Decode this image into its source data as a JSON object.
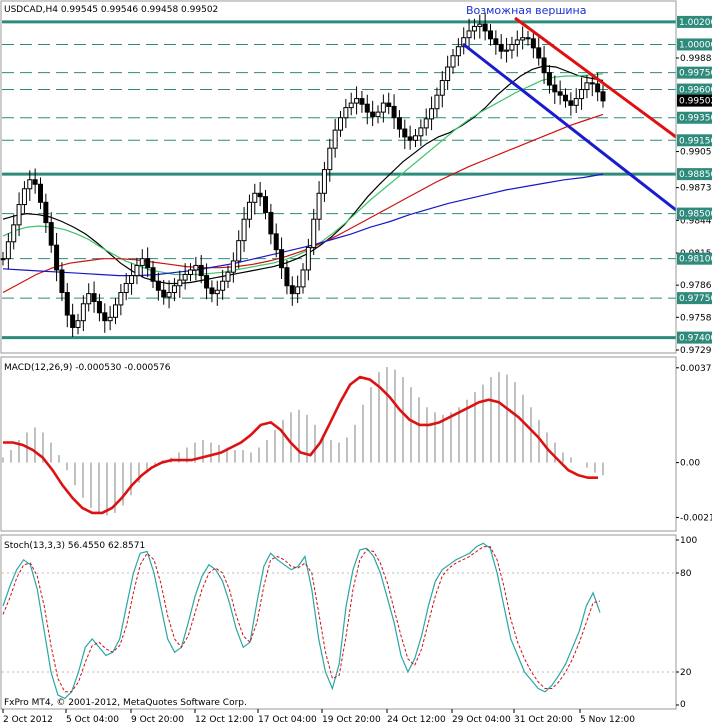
{
  "title": "USDCAD,H4  0.99545 0.99546 0.99458 0.99502",
  "annotation": "Возможная вершина",
  "copyright": "FxPro MT4, © 2001-2012, MetaQuotes Software Corp.",
  "colors": {
    "background": "#ffffff",
    "grid_solid": "#2e8b7b",
    "grid_dash": "#2e8b7b",
    "candle": "#000000",
    "ma_black": "#000000",
    "ma_green": "#3cc46a",
    "ma_red": "#cc1111",
    "ma_blue": "#1818c8",
    "trend_red": "#e01010",
    "trend_blue": "#1a1acf",
    "macd_hist": "#b0b0b0",
    "macd_signal": "#dd1111",
    "stoch_main": "#2aa6a6",
    "stoch_signal": "#cc1111",
    "price_label_bg": "#2e8b7b",
    "current_label_bg": "#000000"
  },
  "chart_data": [
    {
      "type": "candlestick",
      "symbol": "USDCAD",
      "timeframe": "H4",
      "ohlc_last": {
        "open": 0.99545,
        "high": 0.99546,
        "low": 0.99458,
        "close": 0.99502
      },
      "ylim": [
        0.9729,
        1.0035
      ],
      "x_labels": [
        "2 Oct 2012",
        "5 Oct 04:00",
        "9 Oct 20:00",
        "12 Oct 12:00",
        "17 Oct 04:00",
        "19 Oct 20:00",
        "24 Oct 12:00",
        "29 Oct 04:00",
        "31 Oct 20:00",
        "5 Nov 12:00"
      ],
      "y_tick_labels": [
        "0.99880",
        "0.99050",
        "0.98730",
        "0.98440",
        "0.98150",
        "0.97865",
        "0.97580",
        "0.97290"
      ],
      "level_lines_solid": [
        "1.00200",
        "0.98850",
        "0.97400"
      ],
      "level_lines_dashed": [
        "1.00000",
        "0.99750",
        "0.99600",
        "0.99350",
        "0.99150",
        "0.98500",
        "0.98100",
        "0.97750"
      ],
      "current_price_label": "0.99502",
      "series_close": [
        0.981,
        0.9825,
        0.984,
        0.9858,
        0.9872,
        0.988,
        0.9876,
        0.986,
        0.9842,
        0.9822,
        0.98,
        0.978,
        0.976,
        0.9749,
        0.9755,
        0.977,
        0.9779,
        0.9772,
        0.9762,
        0.9755,
        0.9758,
        0.9769,
        0.978,
        0.9788,
        0.9795,
        0.9804,
        0.981,
        0.9802,
        0.979,
        0.9782,
        0.9776,
        0.978,
        0.9786,
        0.9791,
        0.9796,
        0.98,
        0.9804,
        0.9795,
        0.9784,
        0.9779,
        0.9782,
        0.979,
        0.9798,
        0.9808,
        0.9826,
        0.9845,
        0.986,
        0.9868,
        0.9865,
        0.9851,
        0.9832,
        0.9818,
        0.9802,
        0.9786,
        0.9779,
        0.9785,
        0.98,
        0.982,
        0.9845,
        0.9868,
        0.9889,
        0.9908,
        0.9924,
        0.9935,
        0.9944,
        0.9948,
        0.9952,
        0.9947,
        0.994,
        0.9936,
        0.994,
        0.9948,
        0.9945,
        0.9935,
        0.9925,
        0.9918,
        0.9915,
        0.9919,
        0.9926,
        0.9934,
        0.9943,
        0.9955,
        0.9968,
        0.998,
        0.999,
        0.9998,
        1.0006,
        1.0012,
        1.0016,
        1.0018,
        1.0012,
        1.0005,
        1.0,
        0.9994,
        0.9995,
        1.0,
        1.0004,
        1.0006,
        1.0005,
        0.9997,
        0.9988,
        0.9975,
        0.9964,
        0.9958,
        0.9955,
        0.995,
        0.9946,
        0.9952,
        0.996,
        0.9966,
        0.9965,
        0.9958,
        0.995
      ],
      "moving_averages": [
        {
          "color": "#000000",
          "values": [
            0.9845,
            0.9848,
            0.985,
            0.9849,
            0.9847,
            0.9843,
            0.9838,
            0.9832,
            0.9824,
            0.9815,
            0.9806,
            0.9799,
            0.9793,
            0.979,
            0.9788,
            0.9788,
            0.9789,
            0.9791,
            0.9793,
            0.9795,
            0.9797,
            0.9799,
            0.9801,
            0.9803,
            0.9806,
            0.981,
            0.9815,
            0.9822,
            0.983,
            0.984,
            0.9852,
            0.9865,
            0.9876,
            0.9886,
            0.9896,
            0.9904,
            0.9912,
            0.9918,
            0.9922,
            0.9928,
            0.9935,
            0.9944,
            0.9955,
            0.9964,
            0.9972,
            0.9978,
            0.9981,
            0.998,
            0.9976,
            0.9972,
            0.997,
            0.9968
          ]
        },
        {
          "color": "#3cc46a",
          "values": [
            0.983,
            0.9835,
            0.9838,
            0.9839,
            0.9838,
            0.9836,
            0.9832,
            0.9827,
            0.982,
            0.9814,
            0.9808,
            0.9804,
            0.98,
            0.9798,
            0.9796,
            0.9796,
            0.9796,
            0.9797,
            0.9798,
            0.98,
            0.9802,
            0.9804,
            0.9806,
            0.9809,
            0.9813,
            0.9818,
            0.9825,
            0.9833,
            0.9842,
            0.9852,
            0.9862,
            0.9871,
            0.988,
            0.9889,
            0.9898,
            0.9907,
            0.9916,
            0.9925,
            0.9933,
            0.994,
            0.9946,
            0.9952,
            0.9958,
            0.9963,
            0.9968,
            0.9971,
            0.9972,
            0.9972,
            0.9973,
            0.9974
          ]
        },
        {
          "color": "#cc1111",
          "values": [
            0.978,
            0.9788,
            0.9796,
            0.9802,
            0.9806,
            0.9808,
            0.981,
            0.981,
            0.9809,
            0.9807,
            0.9805,
            0.9803,
            0.9802,
            0.9802,
            0.9803,
            0.9805,
            0.9808,
            0.9812,
            0.9817,
            0.9823,
            0.983,
            0.9838,
            0.9846,
            0.9854,
            0.9862,
            0.987,
            0.9878,
            0.9885,
            0.9892,
            0.9898,
            0.9904,
            0.991,
            0.9916,
            0.9922,
            0.9928,
            0.9933,
            0.9938
          ]
        },
        {
          "color": "#1818c8",
          "values": [
            0.9801,
            0.98,
            0.9799,
            0.9798,
            0.9797,
            0.9796,
            0.9795,
            0.9795,
            0.9796,
            0.9798,
            0.98,
            0.9803,
            0.9806,
            0.981,
            0.9814,
            0.9818,
            0.9822,
            0.9827,
            0.9832,
            0.9838,
            0.9843,
            0.9849,
            0.9854,
            0.9859,
            0.9863,
            0.9867,
            0.9871,
            0.9874,
            0.9877,
            0.988,
            0.9882,
            0.9885
          ]
        }
      ]
    },
    {
      "type": "macd",
      "label": "MACD(12,26,9) -0.000530 -0.000576",
      "y_tick_labels": [
        "0.00377",
        "0.00",
        "-0.00218"
      ],
      "ylim": [
        -0.0026,
        0.004
      ],
      "histogram": [
        0.0002,
        0.0005,
        0.0009,
        0.0012,
        0.0014,
        0.0012,
        0.0008,
        0.0003,
        -0.0003,
        -0.0009,
        -0.0014,
        -0.0018,
        -0.002,
        -0.0021,
        -0.002,
        -0.0017,
        -0.0013,
        -0.0008,
        -0.0004,
        -0.0001,
        0.0001,
        0.0002,
        0.0004,
        0.0006,
        0.0008,
        0.0009,
        0.0008,
        0.0007,
        0.0006,
        0.0005,
        0.0005,
        0.0004,
        0.0006,
        0.0009,
        0.0013,
        0.0017,
        0.002,
        0.0021,
        0.0019,
        0.0015,
        0.0011,
        0.0009,
        0.0008,
        0.001,
        0.0015,
        0.0023,
        0.003,
        0.0036,
        0.0038,
        0.0037,
        0.0034,
        0.003,
        0.0026,
        0.0022,
        0.002,
        0.0019,
        0.002,
        0.0022,
        0.0025,
        0.0028,
        0.0031,
        0.0034,
        0.0036,
        0.0035,
        0.0032,
        0.0027,
        0.0022,
        0.0017,
        0.0012,
        0.0008,
        0.0004,
        0.0002,
        0.0,
        -0.0002,
        -0.0004,
        -0.0005
      ],
      "signal": [
        0.0008,
        0.0008,
        0.0007,
        0.0005,
        0.0002,
        -0.0003,
        -0.0009,
        -0.0014,
        -0.0018,
        -0.002,
        -0.002,
        -0.0018,
        -0.0014,
        -0.0009,
        -0.0005,
        -0.0002,
        0.0,
        0.0001,
        0.0001,
        0.0001,
        0.0002,
        0.0003,
        0.0004,
        0.0006,
        0.0008,
        0.0011,
        0.0015,
        0.0016,
        0.0013,
        0.0008,
        0.0004,
        0.0003,
        0.0008,
        0.0016,
        0.0024,
        0.0031,
        0.0034,
        0.0033,
        0.003,
        0.0026,
        0.0021,
        0.0017,
        0.0015,
        0.0015,
        0.0016,
        0.0018,
        0.002,
        0.0022,
        0.0024,
        0.0025,
        0.0024,
        0.0021,
        0.0018,
        0.0014,
        0.001,
        0.0005,
        0.0001,
        -0.0003,
        -0.0005,
        -0.0006,
        -0.0006
      ]
    },
    {
      "type": "stochastic",
      "label": "Stoch(13,3,3) 56.4550 62.8571",
      "y_tick_labels": [
        "100",
        "80",
        "20",
        "0"
      ],
      "ylim": [
        0,
        100
      ],
      "main": [
        60,
        72,
        82,
        88,
        85,
        70,
        45,
        20,
        6,
        4,
        8,
        20,
        35,
        40,
        35,
        30,
        32,
        40,
        60,
        80,
        92,
        93,
        80,
        60,
        40,
        32,
        35,
        50,
        66,
        78,
        85,
        82,
        75,
        62,
        46,
        35,
        38,
        62,
        84,
        92,
        88,
        85,
        82,
        84,
        90,
        70,
        40,
        20,
        10,
        25,
        60,
        82,
        94,
        95,
        90,
        80,
        65,
        50,
        30,
        20,
        28,
        42,
        60,
        75,
        82,
        85,
        88,
        90,
        92,
        96,
        98,
        95,
        80,
        60,
        40,
        30,
        20,
        15,
        10,
        8,
        12,
        18,
        25,
        35,
        45,
        60,
        68,
        56
      ],
      "signal": [
        55,
        65,
        77,
        85,
        86,
        78,
        60,
        36,
        16,
        8,
        8,
        14,
        26,
        36,
        38,
        34,
        32,
        36,
        48,
        68,
        85,
        92,
        88,
        74,
        54,
        40,
        35,
        42,
        56,
        70,
        80,
        83,
        80,
        70,
        54,
        42,
        38,
        50,
        72,
        88,
        90,
        88,
        84,
        83,
        86,
        80,
        56,
        32,
        16,
        18,
        42,
        70,
        88,
        94,
        93,
        86,
        74,
        58,
        42,
        28,
        24,
        34,
        50,
        66,
        78,
        83,
        86,
        88,
        90,
        93,
        96,
        96,
        88,
        72,
        52,
        38,
        28,
        20,
        14,
        10,
        10,
        14,
        20,
        28,
        38,
        50,
        62,
        63
      ]
    }
  ]
}
